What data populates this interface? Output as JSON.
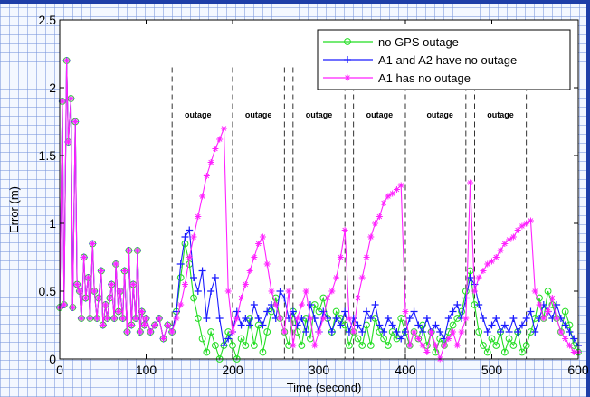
{
  "chart_data": {
    "type": "line",
    "title": "",
    "xlabel": "Time (second)",
    "ylabel": "Error (m)",
    "xlim": [
      0,
      600
    ],
    "ylim": [
      0,
      2.5
    ],
    "xticks": [
      "0",
      "100",
      "200",
      "300",
      "400",
      "500",
      "600"
    ],
    "yticks": [
      "0",
      "0.5",
      "1",
      "1.5",
      "2",
      "2.5"
    ],
    "grid": false,
    "legend_position": "top-right",
    "outages": [
      {
        "label": "outage",
        "start": 130,
        "end": 190
      },
      {
        "label": "outage",
        "start": 200,
        "end": 260
      },
      {
        "label": "outage",
        "start": 270,
        "end": 330
      },
      {
        "label": "outage",
        "start": 340,
        "end": 400
      },
      {
        "label": "outage",
        "start": 410,
        "end": 470
      },
      {
        "label": "outage",
        "start": 480,
        "end": 540
      }
    ],
    "series": [
      {
        "name": "no GPS outage",
        "color": "#22dd22",
        "marker": "circle",
        "x": [
          0,
          3,
          5,
          8,
          10,
          13,
          15,
          18,
          20,
          23,
          25,
          28,
          30,
          33,
          35,
          38,
          40,
          43,
          45,
          48,
          50,
          53,
          55,
          58,
          60,
          63,
          65,
          68,
          70,
          73,
          75,
          78,
          80,
          83,
          85,
          88,
          90,
          93,
          95,
          98,
          100,
          105,
          110,
          115,
          120,
          125,
          130,
          135,
          140,
          145,
          150,
          155,
          160,
          165,
          170,
          175,
          180,
          185,
          190,
          195,
          200,
          205,
          210,
          215,
          220,
          225,
          230,
          235,
          240,
          245,
          250,
          255,
          260,
          265,
          270,
          275,
          280,
          285,
          290,
          295,
          300,
          305,
          310,
          315,
          320,
          325,
          330,
          335,
          340,
          345,
          350,
          355,
          360,
          365,
          370,
          375,
          380,
          385,
          390,
          395,
          400,
          405,
          410,
          415,
          420,
          425,
          430,
          435,
          440,
          445,
          450,
          455,
          460,
          465,
          470,
          475,
          480,
          485,
          490,
          495,
          500,
          505,
          510,
          515,
          520,
          525,
          530,
          535,
          540,
          545,
          550,
          555,
          560,
          565,
          570,
          575,
          580,
          585,
          590,
          595,
          600
        ],
        "y": [
          0.38,
          1.9,
          0.4,
          2.2,
          1.6,
          1.92,
          0.38,
          1.75,
          0.55,
          0.5,
          0.3,
          0.75,
          0.45,
          0.6,
          0.3,
          0.85,
          0.5,
          0.3,
          0.45,
          0.65,
          0.25,
          0.4,
          0.3,
          0.45,
          0.55,
          0.3,
          0.7,
          0.35,
          0.5,
          0.3,
          0.65,
          0.2,
          0.8,
          0.25,
          0.55,
          0.3,
          0.8,
          0.2,
          0.35,
          0.25,
          0.3,
          0.2,
          0.25,
          0.3,
          0.15,
          0.25,
          0.2,
          0.35,
          0.6,
          0.85,
          0.7,
          0.45,
          0.3,
          0.15,
          0.05,
          0.2,
          0.1,
          0.0,
          0.1,
          0.2,
          0.1,
          0.0,
          0.15,
          0.1,
          0.3,
          0.1,
          0.25,
          0.05,
          0.2,
          0.35,
          0.45,
          0.3,
          0.2,
          0.1,
          0.35,
          0.2,
          0.1,
          0.3,
          0.15,
          0.4,
          0.35,
          0.45,
          0.3,
          0.2,
          0.35,
          0.3,
          0.25,
          0.1,
          0.2,
          0.15,
          0.1,
          0.25,
          0.1,
          0.3,
          0.2,
          0.15,
          0.1,
          0.2,
          0.15,
          0.3,
          0.2,
          0.1,
          0.2,
          0.15,
          0.25,
          0.1,
          0.2,
          0.05,
          0.15,
          0.1,
          0.2,
          0.25,
          0.3,
          0.35,
          0.5,
          0.65,
          0.4,
          0.2,
          0.1,
          0.05,
          0.15,
          0.1,
          0.2,
          0.05,
          0.15,
          0.1,
          0.2,
          0.05,
          0.1,
          0.2,
          0.3,
          0.45,
          0.3,
          0.5,
          0.4,
          0.3,
          0.2,
          0.35,
          0.25,
          0.1,
          0.05
        ]
      },
      {
        "name": "A1 and A2 have no outage",
        "color": "#1a1aff",
        "marker": "plus",
        "x": [
          0,
          3,
          5,
          8,
          10,
          13,
          15,
          18,
          20,
          23,
          25,
          28,
          30,
          33,
          35,
          38,
          40,
          43,
          45,
          48,
          50,
          53,
          55,
          58,
          60,
          63,
          65,
          68,
          70,
          73,
          75,
          78,
          80,
          83,
          85,
          88,
          90,
          93,
          95,
          98,
          100,
          105,
          110,
          115,
          120,
          125,
          130,
          135,
          140,
          145,
          150,
          155,
          160,
          165,
          170,
          175,
          180,
          185,
          190,
          195,
          200,
          205,
          210,
          215,
          220,
          225,
          230,
          235,
          240,
          245,
          250,
          255,
          260,
          265,
          270,
          275,
          280,
          285,
          290,
          295,
          300,
          305,
          310,
          315,
          320,
          325,
          330,
          335,
          340,
          345,
          350,
          355,
          360,
          365,
          370,
          375,
          380,
          385,
          390,
          395,
          400,
          405,
          410,
          415,
          420,
          425,
          430,
          435,
          440,
          445,
          450,
          455,
          460,
          465,
          470,
          475,
          480,
          485,
          490,
          495,
          500,
          505,
          510,
          515,
          520,
          525,
          530,
          535,
          540,
          545,
          550,
          555,
          560,
          565,
          570,
          575,
          580,
          585,
          590,
          595,
          600
        ],
        "y": [
          0.38,
          1.9,
          0.4,
          2.2,
          1.6,
          1.92,
          0.38,
          1.75,
          0.55,
          0.5,
          0.3,
          0.75,
          0.45,
          0.6,
          0.3,
          0.85,
          0.5,
          0.3,
          0.45,
          0.65,
          0.25,
          0.4,
          0.3,
          0.45,
          0.55,
          0.3,
          0.7,
          0.35,
          0.5,
          0.3,
          0.65,
          0.2,
          0.8,
          0.25,
          0.55,
          0.3,
          0.8,
          0.2,
          0.35,
          0.25,
          0.3,
          0.2,
          0.25,
          0.3,
          0.15,
          0.25,
          0.2,
          0.35,
          0.7,
          0.9,
          0.95,
          0.6,
          0.5,
          0.65,
          0.3,
          0.5,
          0.6,
          0.3,
          0.1,
          0.15,
          0.2,
          0.35,
          0.25,
          0.3,
          0.25,
          0.4,
          0.3,
          0.25,
          0.35,
          0.4,
          0.3,
          0.5,
          0.45,
          0.3,
          0.35,
          0.25,
          0.3,
          0.2,
          0.4,
          0.3,
          0.2,
          0.35,
          0.3,
          0.2,
          0.3,
          0.25,
          0.35,
          0.2,
          0.3,
          0.25,
          0.2,
          0.35,
          0.3,
          0.4,
          0.25,
          0.2,
          0.3,
          0.25,
          0.2,
          0.15,
          0.2,
          0.3,
          0.35,
          0.25,
          0.2,
          0.3,
          0.2,
          0.25,
          0.2,
          0.15,
          0.3,
          0.35,
          0.4,
          0.3,
          0.45,
          0.6,
          0.55,
          0.4,
          0.3,
          0.2,
          0.25,
          0.3,
          0.2,
          0.25,
          0.2,
          0.3,
          0.2,
          0.25,
          0.3,
          0.35,
          0.2,
          0.3,
          0.4,
          0.35,
          0.3,
          0.4,
          0.3,
          0.25,
          0.2,
          0.15,
          0.1
        ]
      },
      {
        "name": "A1 has no outage",
        "color": "#ff22ff",
        "marker": "star",
        "x": [
          0,
          3,
          5,
          8,
          10,
          13,
          15,
          18,
          20,
          23,
          25,
          28,
          30,
          33,
          35,
          38,
          40,
          43,
          45,
          48,
          50,
          53,
          55,
          58,
          60,
          63,
          65,
          68,
          70,
          73,
          75,
          78,
          80,
          83,
          85,
          88,
          90,
          93,
          95,
          98,
          100,
          105,
          110,
          115,
          120,
          125,
          130,
          135,
          140,
          145,
          150,
          155,
          160,
          165,
          170,
          175,
          180,
          185,
          190,
          195,
          200,
          205,
          210,
          215,
          220,
          225,
          230,
          235,
          240,
          245,
          250,
          255,
          260,
          265,
          270,
          275,
          280,
          285,
          290,
          295,
          300,
          305,
          310,
          315,
          320,
          325,
          330,
          335,
          340,
          345,
          350,
          355,
          360,
          365,
          370,
          375,
          380,
          385,
          390,
          395,
          400,
          405,
          410,
          415,
          420,
          425,
          430,
          435,
          440,
          445,
          450,
          455,
          460,
          465,
          470,
          475,
          480,
          485,
          490,
          495,
          500,
          505,
          510,
          515,
          520,
          525,
          530,
          535,
          540,
          545,
          550,
          555,
          560,
          565,
          570,
          575,
          580,
          585,
          590,
          595,
          600
        ],
        "y": [
          0.38,
          1.9,
          0.4,
          2.2,
          1.6,
          1.92,
          0.38,
          1.75,
          0.55,
          0.5,
          0.3,
          0.75,
          0.45,
          0.6,
          0.3,
          0.85,
          0.5,
          0.3,
          0.45,
          0.65,
          0.25,
          0.4,
          0.3,
          0.45,
          0.55,
          0.3,
          0.7,
          0.35,
          0.5,
          0.3,
          0.65,
          0.2,
          0.8,
          0.25,
          0.55,
          0.3,
          0.8,
          0.2,
          0.35,
          0.25,
          0.3,
          0.2,
          0.25,
          0.3,
          0.15,
          0.25,
          0.2,
          0.3,
          0.4,
          0.55,
          0.75,
          0.9,
          1.05,
          1.2,
          1.35,
          1.45,
          1.55,
          1.62,
          1.7,
          0.5,
          0.2,
          0.3,
          0.45,
          0.55,
          0.65,
          0.75,
          0.85,
          0.9,
          0.7,
          0.5,
          0.4,
          0.3,
          0.2,
          0.5,
          0.1,
          0.3,
          0.4,
          0.5,
          0.3,
          0.1,
          0.2,
          0.3,
          0.45,
          0.5,
          0.6,
          0.75,
          0.95,
          0.3,
          0.2,
          0.45,
          0.6,
          0.75,
          0.9,
          1.0,
          1.05,
          1.15,
          1.2,
          1.22,
          1.25,
          1.28,
          0.35,
          0.1,
          0.2,
          0.15,
          0.1,
          0.05,
          0.2,
          0.1,
          0.0,
          0.1,
          0.15,
          0.2,
          0.1,
          0.2,
          0.3,
          1.3,
          0.5,
          0.6,
          0.65,
          0.7,
          0.72,
          0.75,
          0.8,
          0.85,
          0.88,
          0.9,
          0.95,
          0.98,
          1.0,
          1.02,
          0.5,
          0.4,
          0.3,
          0.35,
          0.45,
          0.3,
          0.2,
          0.15,
          0.1,
          0.05,
          0.05
        ]
      }
    ]
  }
}
